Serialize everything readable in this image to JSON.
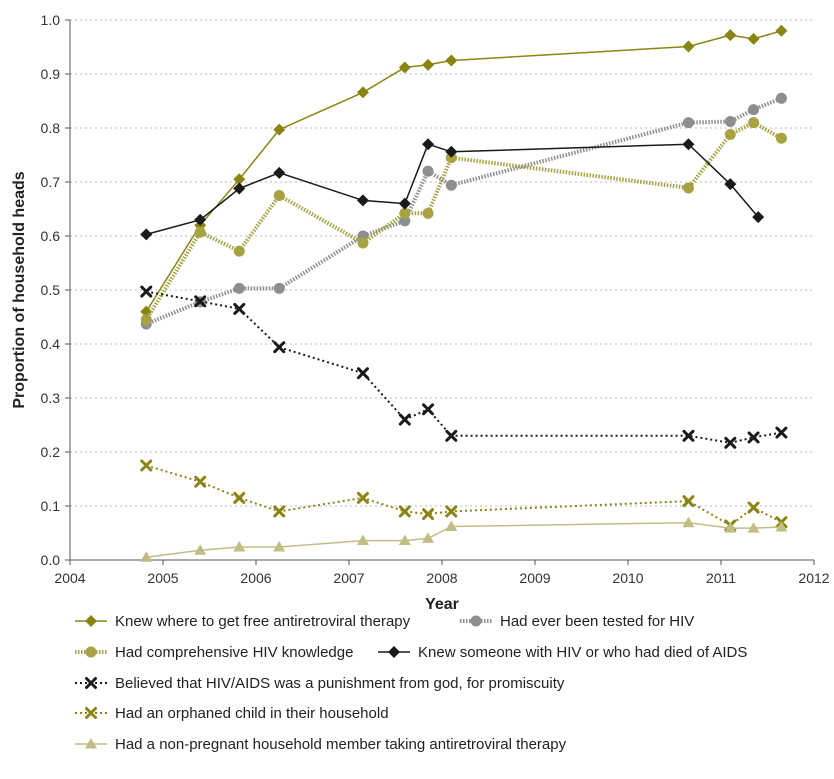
{
  "chart_data": {
    "type": "line",
    "title": "",
    "xlabel": "Year",
    "ylabel": "Proportion of household heads",
    "xlim": [
      2004,
      2012
    ],
    "ylim": [
      0.0,
      1.0
    ],
    "x_ticks": [
      "2004",
      "2005",
      "2006",
      "2007",
      "2008",
      "2009",
      "2010",
      "2011",
      "2012"
    ],
    "y_ticks": [
      "0.0",
      "0.1",
      "0.2",
      "0.3",
      "0.4",
      "0.5",
      "0.6",
      "0.7",
      "0.8",
      "0.9",
      "1.0"
    ],
    "grid": "horizontal dotted",
    "legend_position": "bottom",
    "series": [
      {
        "name": "Knew where to get free antiretroviral therapy",
        "color": "#8a8513",
        "line_style": "solid",
        "marker": "diamond",
        "x": [
          2004.82,
          2005.4,
          2005.82,
          2006.25,
          2007.15,
          2007.6,
          2007.85,
          2008.1,
          2010.65,
          2011.1,
          2011.35,
          2011.65
        ],
        "y": [
          0.46,
          0.62,
          0.705,
          0.797,
          0.866,
          0.912,
          0.917,
          0.925,
          0.951,
          0.972,
          0.965,
          0.98
        ]
      },
      {
        "name": "Had ever been tested for HIV",
        "color": "#8e8e90",
        "line_style": "dotted-thick",
        "marker": "circle",
        "x": [
          2004.82,
          2005.4,
          2005.82,
          2006.25,
          2007.15,
          2007.6,
          2007.85,
          2008.1,
          2010.65,
          2011.1,
          2011.35,
          2011.65
        ],
        "y": [
          0.437,
          0.478,
          0.503,
          0.503,
          0.6,
          0.628,
          0.72,
          0.694,
          0.81,
          0.812,
          0.834,
          0.855
        ]
      },
      {
        "name": "Had comprehensive HIV knowledge",
        "color": "#a7a242",
        "line_style": "dotted-thick",
        "marker": "circle",
        "x": [
          2004.82,
          2005.4,
          2005.82,
          2006.25,
          2007.15,
          2007.6,
          2007.85,
          2008.1,
          2010.65,
          2011.1,
          2011.35,
          2011.65
        ],
        "y": [
          0.445,
          0.607,
          0.572,
          0.675,
          0.587,
          0.642,
          0.642,
          0.745,
          0.689,
          0.788,
          0.81,
          0.781
        ]
      },
      {
        "name": "Knew someone with HIV or who had died of AIDS",
        "color": "#1a1a1a",
        "line_style": "solid",
        "marker": "diamond",
        "x": [
          2004.82,
          2005.4,
          2005.82,
          2006.25,
          2007.15,
          2007.6,
          2007.85,
          2008.1,
          2010.65,
          2011.1,
          2011.4
        ],
        "y": [
          0.603,
          0.63,
          0.688,
          0.717,
          0.666,
          0.66,
          0.77,
          0.756,
          0.77,
          0.696,
          0.635
        ]
      },
      {
        "name": "Believed that HIV/AIDS was a punishment from god, for promiscuity",
        "color": "#1a1a1a",
        "line_style": "dotted",
        "marker": "cross",
        "x": [
          2004.82,
          2005.4,
          2005.82,
          2006.25,
          2007.15,
          2007.6,
          2007.85,
          2008.1,
          2010.65,
          2011.1,
          2011.35,
          2011.65
        ],
        "y": [
          0.497,
          0.479,
          0.465,
          0.394,
          0.346,
          0.26,
          0.279,
          0.23,
          0.23,
          0.217,
          0.227,
          0.236
        ]
      },
      {
        "name": "Had an orphaned child in their household",
        "color": "#8a8513",
        "line_style": "dotted",
        "marker": "cross",
        "x": [
          2004.82,
          2005.4,
          2005.82,
          2006.25,
          2007.15,
          2007.6,
          2007.85,
          2008.1,
          2010.65,
          2011.1,
          2011.35,
          2011.65
        ],
        "y": [
          0.175,
          0.145,
          0.115,
          0.09,
          0.115,
          0.09,
          0.085,
          0.09,
          0.109,
          0.064,
          0.097,
          0.07
        ]
      },
      {
        "name": "Had a non-pregnant household member taking antiretroviral therapy",
        "color": "#c2bd85",
        "line_style": "solid",
        "marker": "triangle",
        "x": [
          2004.82,
          2005.4,
          2005.82,
          2006.25,
          2007.15,
          2007.6,
          2007.85,
          2008.1,
          2010.65,
          2011.1,
          2011.35,
          2011.65
        ],
        "y": [
          0.005,
          0.018,
          0.024,
          0.024,
          0.036,
          0.036,
          0.04,
          0.062,
          0.069,
          0.059,
          0.059,
          0.061
        ]
      }
    ]
  }
}
